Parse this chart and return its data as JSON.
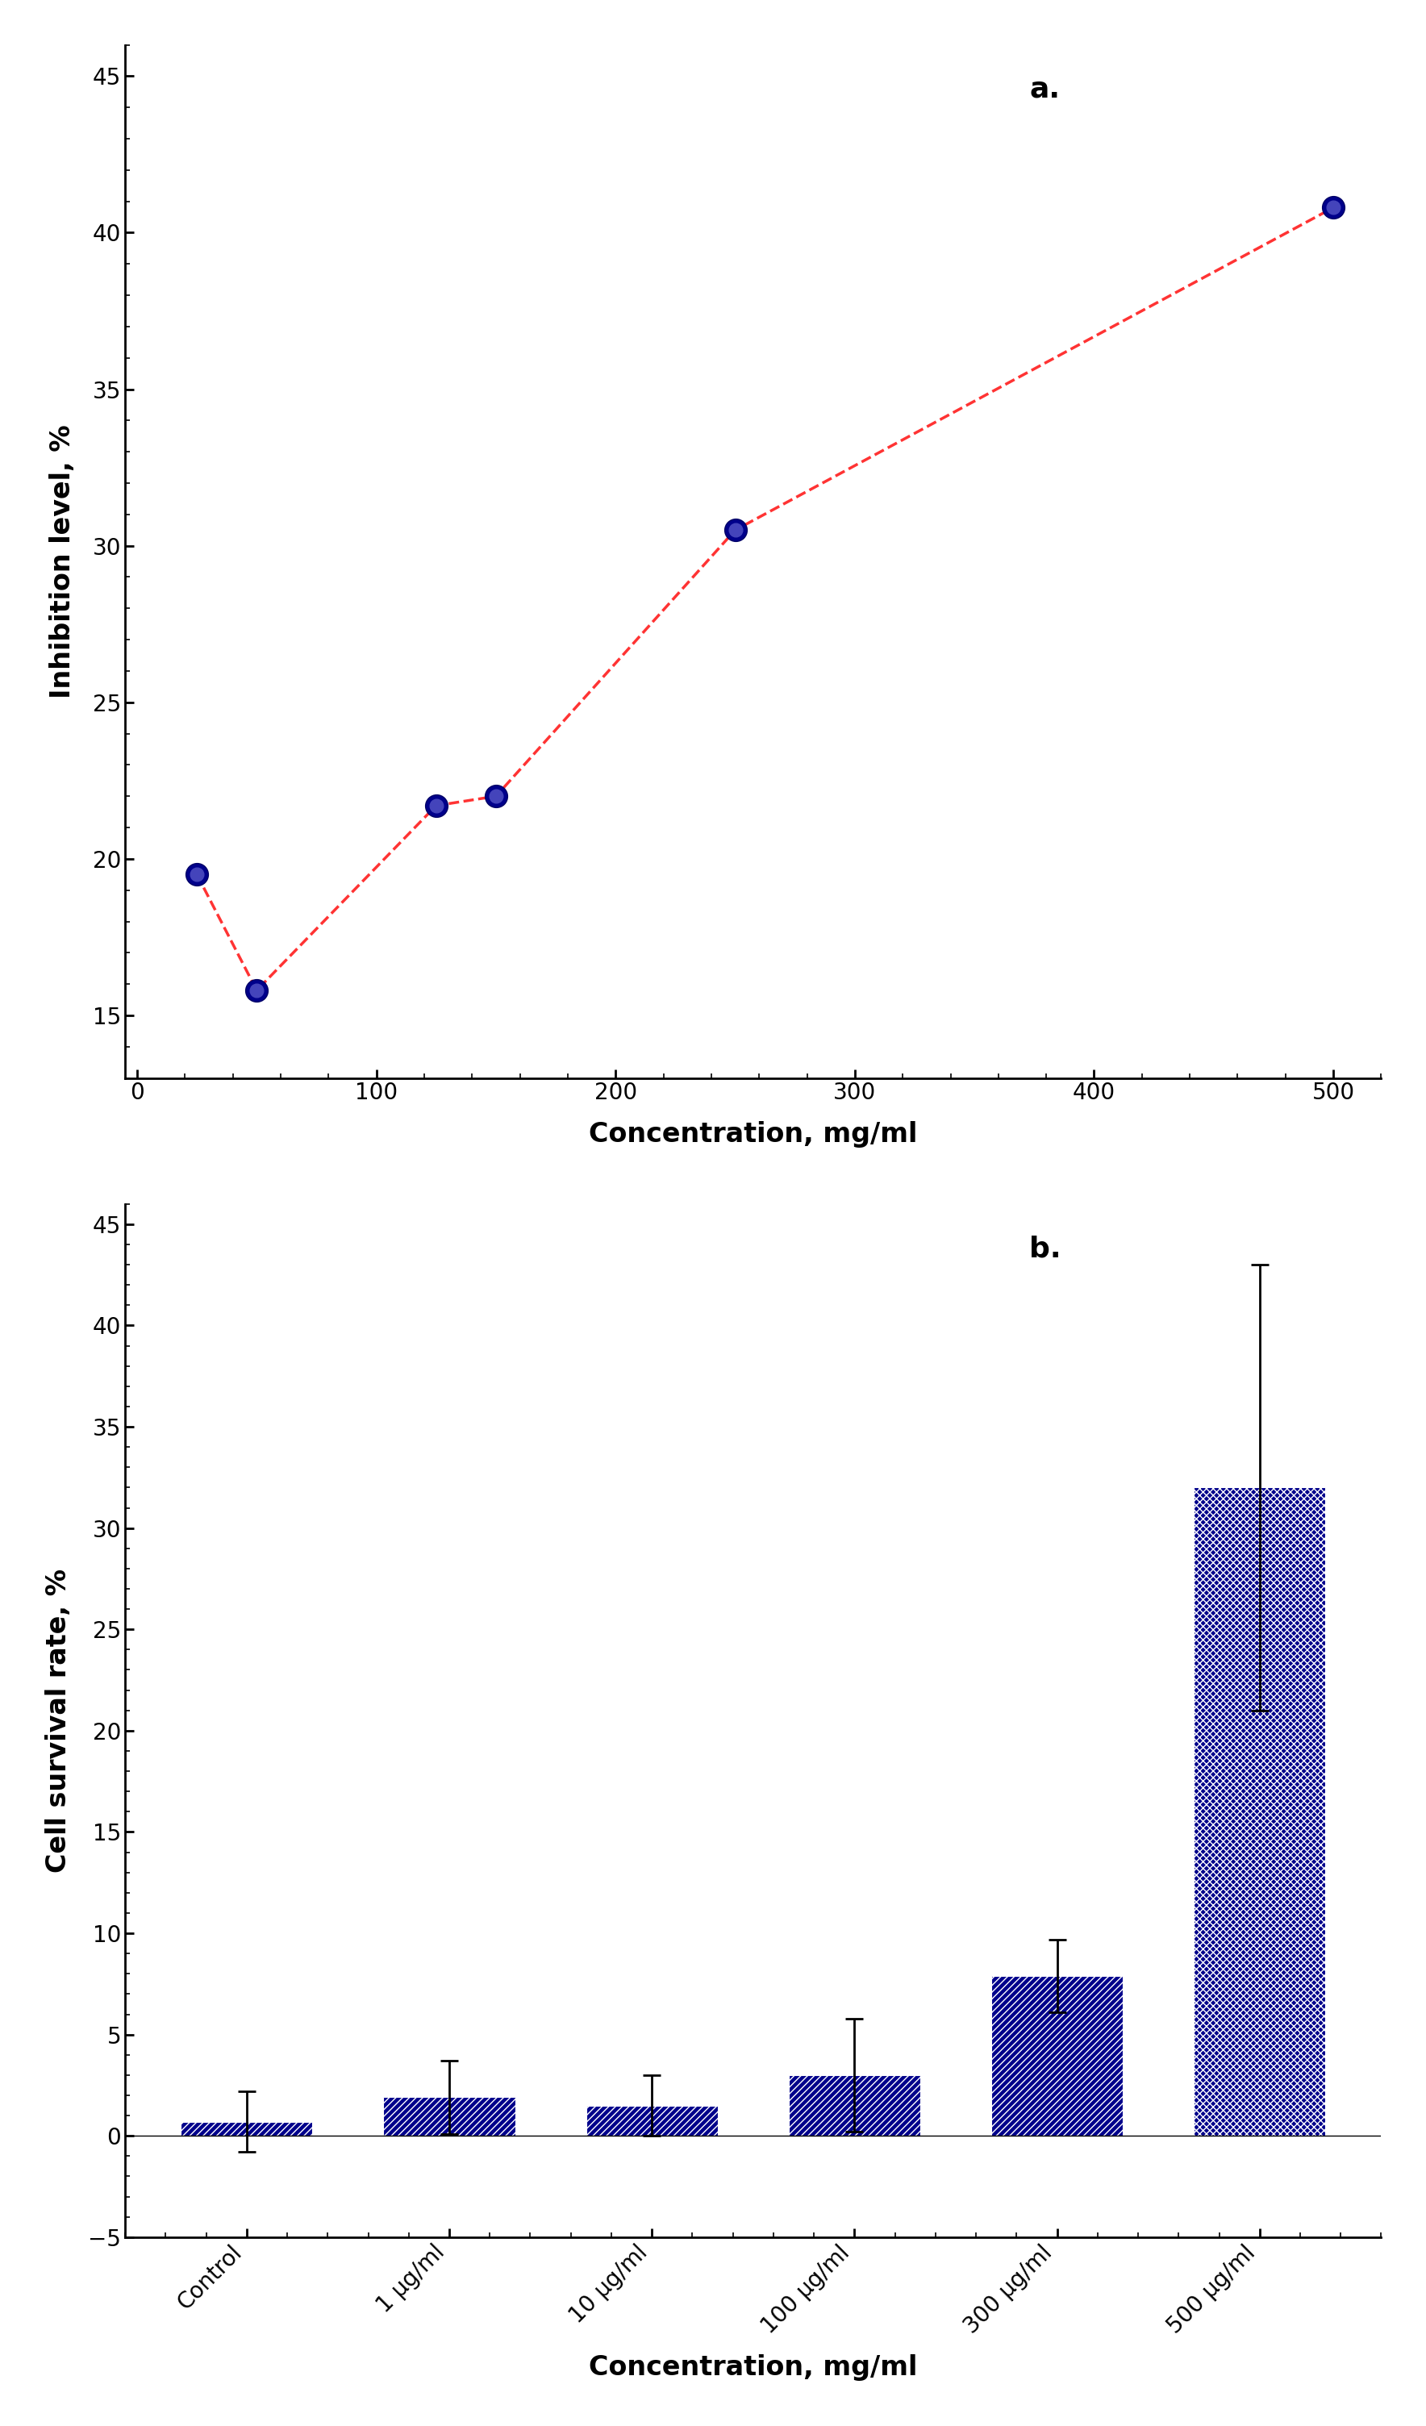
{
  "panel_a": {
    "title": "a.",
    "x": [
      25,
      50,
      125,
      150,
      250,
      500
    ],
    "y": [
      19.5,
      15.8,
      21.7,
      22.0,
      30.5,
      40.8
    ],
    "xlim": [
      -5,
      520
    ],
    "ylim": [
      13,
      46
    ],
    "xticks": [
      0,
      100,
      200,
      300,
      400,
      500
    ],
    "yticks": [
      15,
      20,
      25,
      30,
      35,
      40,
      45
    ],
    "xlabel": "Concentration, mg/ml",
    "ylabel": "Inhibition level, %",
    "line_color": "#FF3333",
    "marker_color": "#00008B",
    "marker_size": 18
  },
  "panel_b": {
    "title": "b.",
    "categories": [
      "Control",
      "1 μg/ml",
      "10 μg/ml",
      "100 μg/ml",
      "300 μg/ml",
      "500 μg/ml"
    ],
    "values": [
      0.7,
      1.9,
      1.5,
      3.0,
      7.9,
      32.0
    ],
    "errors": [
      1.5,
      1.8,
      1.5,
      2.8,
      1.8,
      11.0
    ],
    "xlim": [
      -0.6,
      5.6
    ],
    "ylim": [
      -5,
      46
    ],
    "yticks": [
      -5,
      0,
      5,
      10,
      15,
      20,
      25,
      30,
      35,
      40,
      45
    ],
    "xlabel": "Concentration, mg/ml",
    "ylabel": "Cell survival rate, %",
    "bar_color": "#00008B",
    "hatch_patterns": [
      "////",
      "////",
      "////",
      "////",
      "////",
      "xxxx"
    ]
  }
}
